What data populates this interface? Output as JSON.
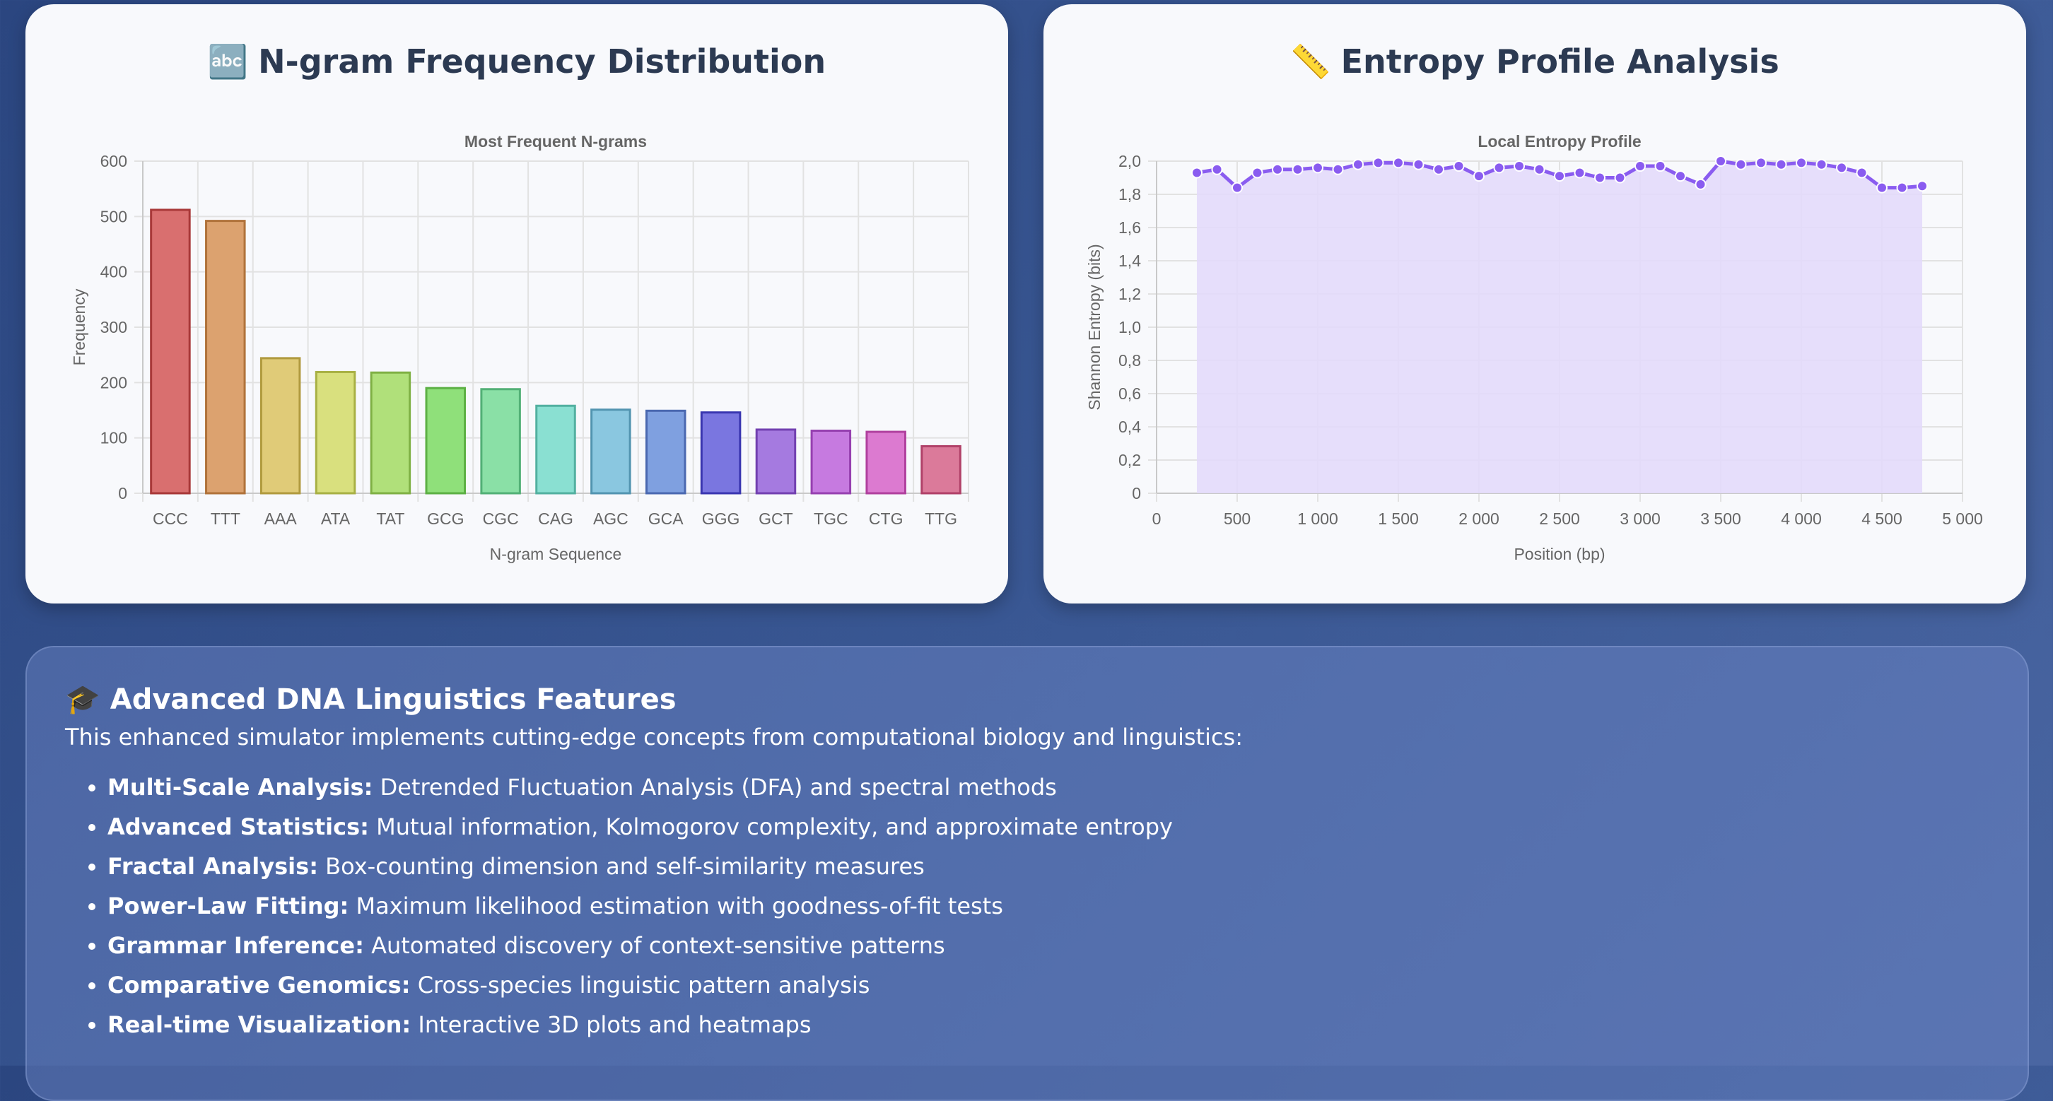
{
  "ngram_panel": {
    "emoji": "🔤",
    "title": "N-gram Frequency Distribution"
  },
  "entropy_panel": {
    "emoji": "📏",
    "title": "Entropy Profile Analysis"
  },
  "chart_data": [
    {
      "type": "bar",
      "title": "Most Frequent N-grams",
      "xlabel": "N-gram Sequence",
      "ylabel": "Frequency",
      "ylim": [
        0,
        600
      ],
      "yticks": [
        "0",
        "100",
        "200",
        "300",
        "400",
        "500",
        "600"
      ],
      "categories": [
        "CCC",
        "TTT",
        "AAA",
        "ATA",
        "TAT",
        "GCG",
        "CGC",
        "CAG",
        "AGC",
        "GCA",
        "GGG",
        "GCT",
        "TGC",
        "CTG",
        "TTG"
      ],
      "values": [
        512,
        492,
        244,
        219,
        218,
        190,
        188,
        158,
        151,
        149,
        146,
        115,
        113,
        111,
        85
      ],
      "colors": [
        "#d96f6f",
        "#dca26f",
        "#e0cb78",
        "#d9e07e",
        "#b0e07a",
        "#8fe07a",
        "#8ae0a6",
        "#8ae0d2",
        "#8ac7e0",
        "#7fa0e0",
        "#7a76e0",
        "#a57ae0",
        "#c67ae0",
        "#dc7ad0",
        "#db7a9a"
      ],
      "borders": [
        "#a83838",
        "#b0723a",
        "#b09a3e",
        "#a8b044",
        "#7fb044",
        "#5cb044",
        "#52b076",
        "#52b0a0",
        "#5294b0",
        "#4a68b0",
        "#3a36b0",
        "#7240b0",
        "#9640b0",
        "#b0409e",
        "#b04068"
      ],
      "grid": true,
      "legend": "none"
    },
    {
      "type": "area",
      "title": "Local Entropy Profile",
      "xlabel": "Position (bp)",
      "ylabel": "Shannon Entropy (bits)",
      "xlim": [
        0,
        5000
      ],
      "ylim": [
        0,
        2.0
      ],
      "xticks": [
        "0",
        "500",
        "1 000",
        "1 500",
        "2 000",
        "2 500",
        "3 000",
        "3 500",
        "4 000",
        "4 500",
        "5 000"
      ],
      "yticks": [
        "0",
        "0,2",
        "0,4",
        "0,6",
        "0,8",
        "1,0",
        "1,2",
        "1,4",
        "1,6",
        "1,8",
        "2,0"
      ],
      "x": [
        250,
        375,
        500,
        625,
        750,
        875,
        1000,
        1125,
        1250,
        1375,
        1500,
        1625,
        1750,
        1875,
        2000,
        2125,
        2250,
        2375,
        2500,
        2625,
        2750,
        2875,
        3000,
        3125,
        3250,
        3375,
        3500,
        3625,
        3750,
        3875,
        4000,
        4125,
        4250,
        4375,
        4500,
        4625,
        4750
      ],
      "y": [
        1.93,
        1.95,
        1.84,
        1.93,
        1.95,
        1.95,
        1.96,
        1.95,
        1.98,
        1.99,
        1.99,
        1.98,
        1.95,
        1.97,
        1.91,
        1.96,
        1.97,
        1.95,
        1.91,
        1.93,
        1.9,
        1.9,
        1.97,
        1.97,
        1.91,
        1.86,
        2.0,
        1.98,
        1.99,
        1.98,
        1.99,
        1.98,
        1.96,
        1.93,
        1.84,
        1.84,
        1.85
      ],
      "line_color": "#8a5cf0",
      "fill_color": "#e3dafb",
      "grid": true,
      "legend": "none"
    }
  ],
  "features": {
    "emoji": "🎓",
    "heading": "Advanced DNA Linguistics Features",
    "intro": "This enhanced simulator implements cutting-edge concepts from computational biology and linguistics:",
    "items": [
      {
        "term": "Multi-Scale Analysis:",
        "desc": " Detrended Fluctuation Analysis (DFA) and spectral methods"
      },
      {
        "term": "Advanced Statistics:",
        "desc": " Mutual information, Kolmogorov complexity, and approximate entropy"
      },
      {
        "term": "Fractal Analysis:",
        "desc": " Box-counting dimension and self-similarity measures"
      },
      {
        "term": "Power-Law Fitting:",
        "desc": " Maximum likelihood estimation with goodness-of-fit tests"
      },
      {
        "term": "Grammar Inference:",
        "desc": " Automated discovery of context-sensitive patterns"
      },
      {
        "term": "Comparative Genomics:",
        "desc": " Cross-species linguistic pattern analysis"
      },
      {
        "term": "Real-time Visualization:",
        "desc": " Interactive 3D plots and heatmaps"
      }
    ]
  }
}
